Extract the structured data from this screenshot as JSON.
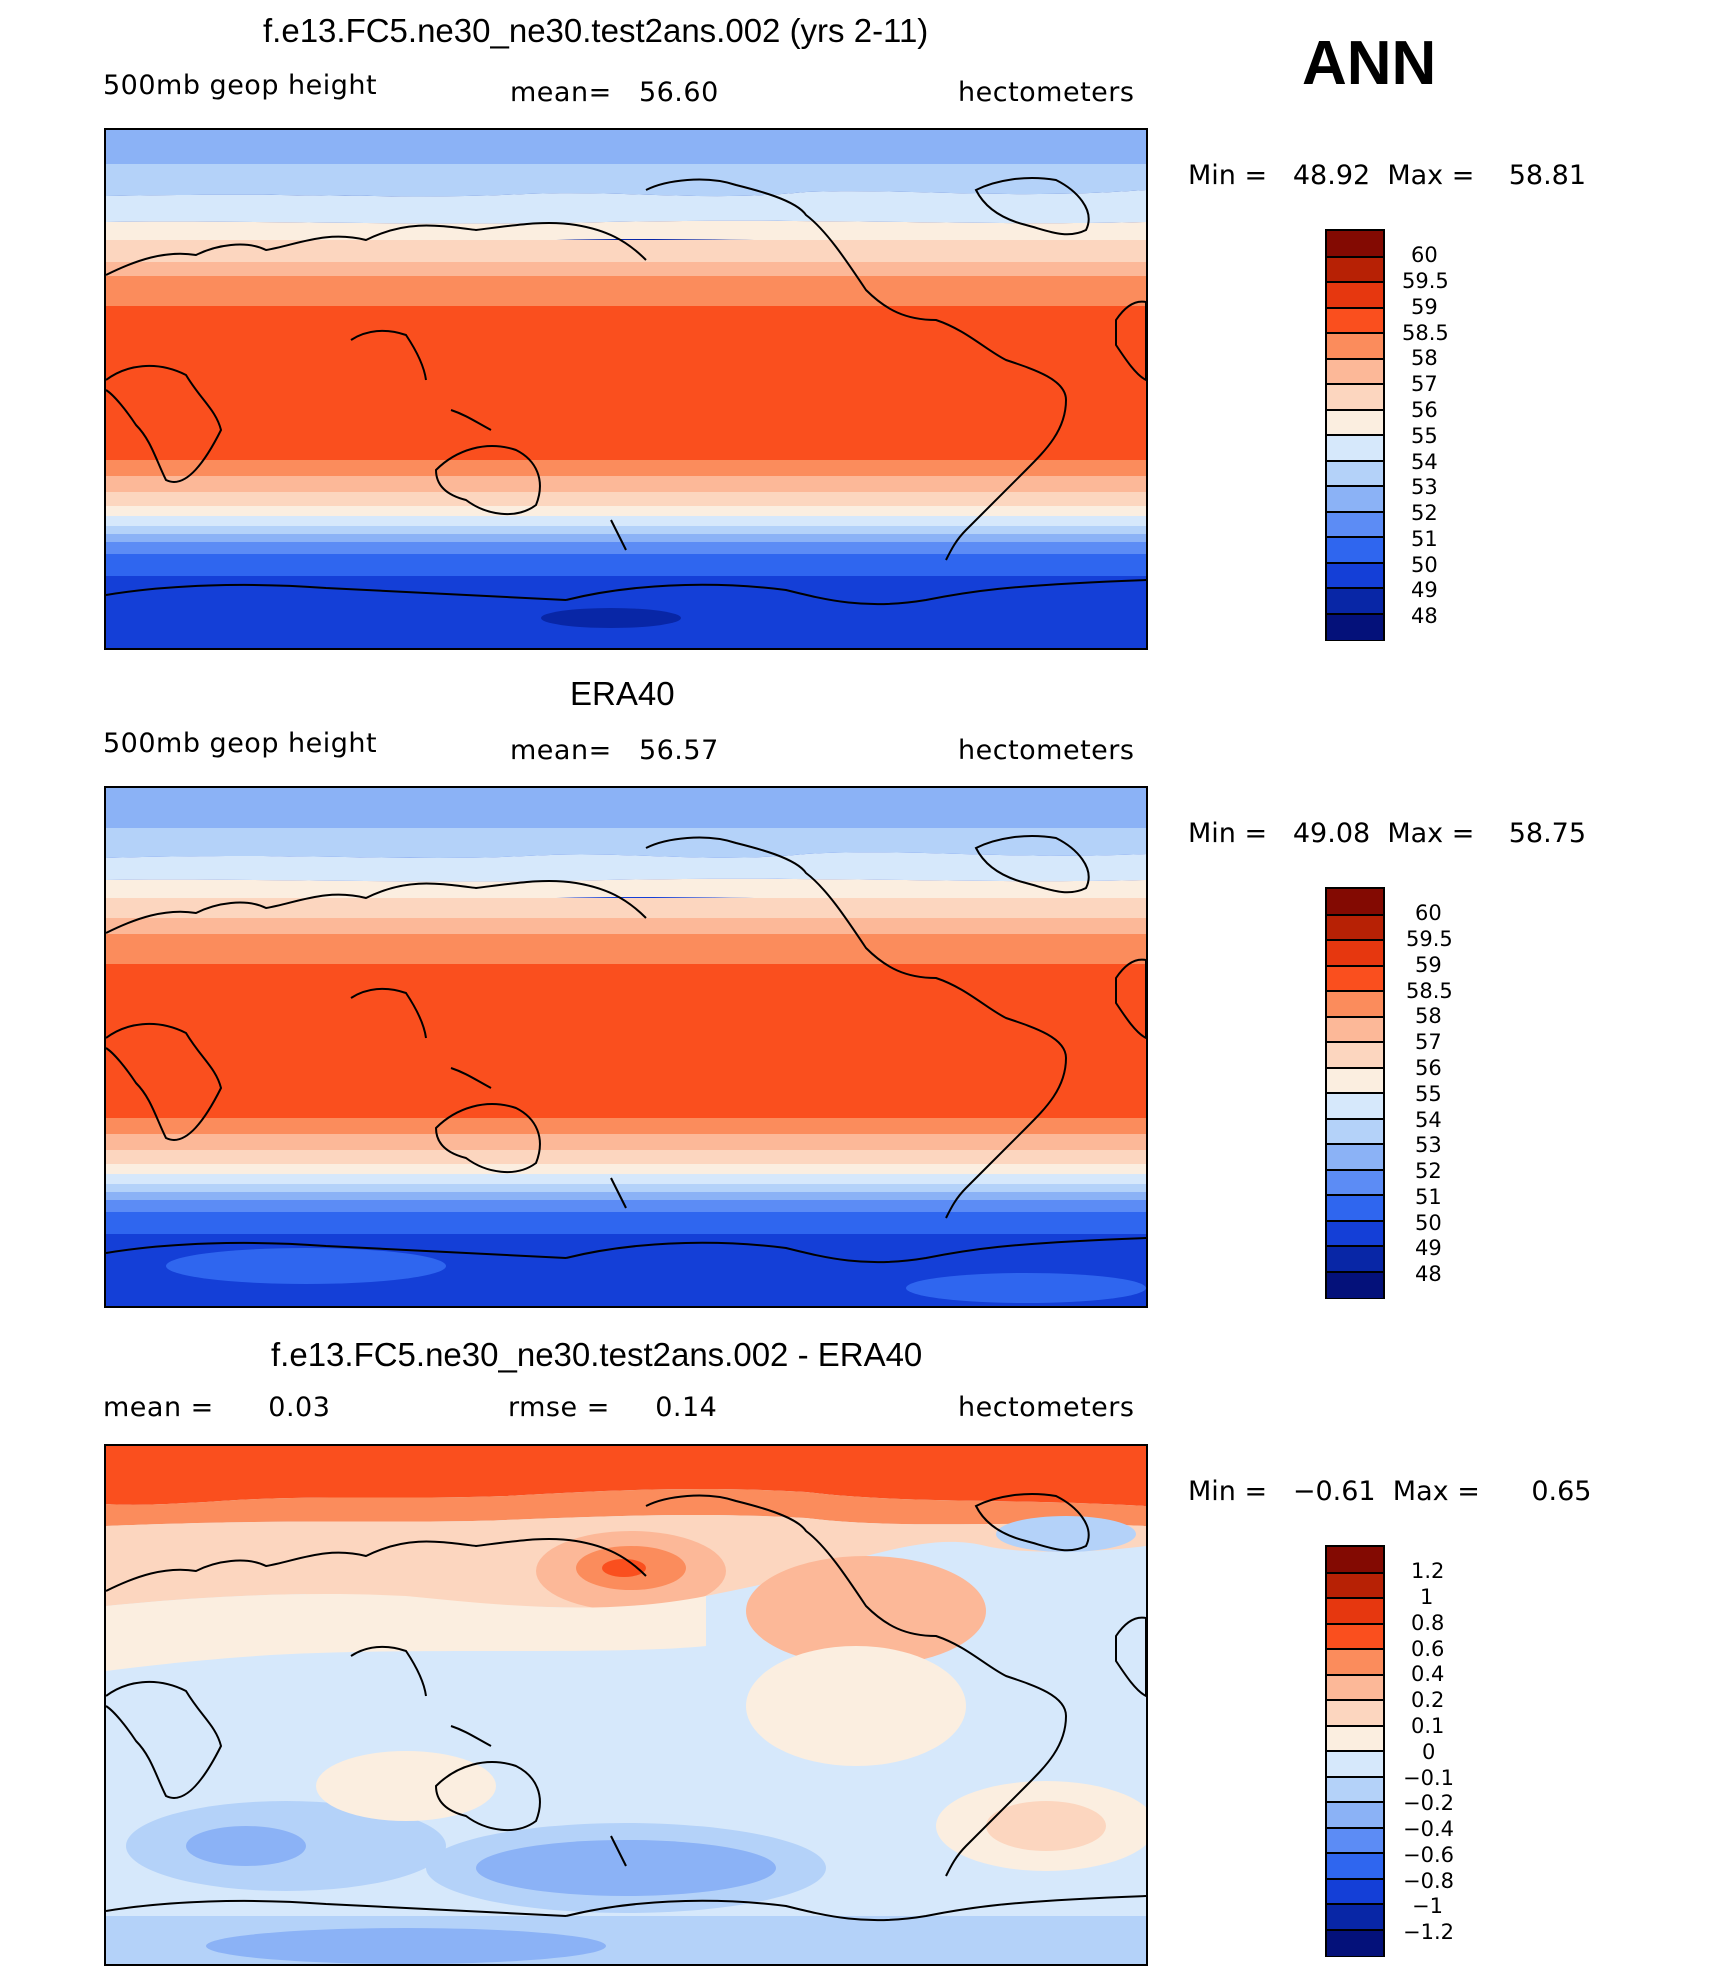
{
  "season": "ANN",
  "units": "hectometers",
  "colors": {
    "warm": [
      "#fbeee0",
      "#fcd6bf",
      "#fcb898",
      "#fb8c5c",
      "#fa4f1e",
      "#e6370f",
      "#b72105",
      "#830a02"
    ],
    "cool": [
      "#d6e8fb",
      "#b4d2f9",
      "#8bb2f6",
      "#5c8cf5",
      "#2f66ef",
      "#143fd7",
      "#0826a6",
      "#04117a"
    ],
    "land_outline": "#000000"
  },
  "panels": [
    {
      "id": "model",
      "title": "f.e13.FC5.ne30_ne30.test2ans.002 (yrs 2-11)",
      "variable": "500mb geop height",
      "stat_label": "mean=",
      "stat_value": "56.60",
      "stat2_label": "",
      "stat2_value": "",
      "units": "hectometers",
      "min_label": "Min =",
      "min_value": "48.92",
      "max_label": "Max =",
      "max_value": "58.81",
      "colorbar_labels": [
        "60",
        "59.5",
        "59",
        "58.5",
        "58",
        "57",
        "56",
        "55",
        "54",
        "53",
        "52",
        "51",
        "50",
        "49",
        "48"
      ]
    },
    {
      "id": "obs",
      "title": "ERA40",
      "variable": "500mb geop height",
      "stat_label": "mean=",
      "stat_value": "56.57",
      "stat2_label": "",
      "stat2_value": "",
      "units": "hectometers",
      "min_label": "Min =",
      "min_value": "49.08",
      "max_label": "Max =",
      "max_value": "58.75",
      "colorbar_labels": [
        "60",
        "59.5",
        "59",
        "58.5",
        "58",
        "57",
        "56",
        "55",
        "54",
        "53",
        "52",
        "51",
        "50",
        "49",
        "48"
      ]
    },
    {
      "id": "diff",
      "title": "f.e13.FC5.ne30_ne30.test2ans.002 - ERA40",
      "variable": "mean =",
      "stat_label": "",
      "stat_value": "0.03",
      "stat2_label": "rmse =",
      "stat2_value": "0.14",
      "units": "hectometers",
      "min_label": "Min =",
      "min_value": "−0.61",
      "max_label": "Max =",
      "max_value": "0.65",
      "colorbar_labels": [
        "1.2",
        "1",
        "0.8",
        "0.6",
        "0.4",
        "0.2",
        "0.1",
        "0",
        "−0.1",
        "−0.2",
        "−0.4",
        "−0.6",
        "−0.8",
        "−1",
        "−1.2"
      ]
    }
  ]
}
